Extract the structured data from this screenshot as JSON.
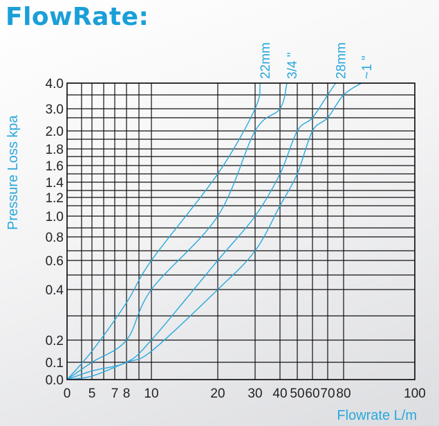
{
  "title": "FlowRate:",
  "chart_data": {
    "type": "line",
    "xlabel": "Flowrate L/m",
    "ylabel": "Pressure Loss  kpa",
    "x_ticks": [
      0,
      5,
      7,
      8,
      10,
      20,
      30,
      40,
      50,
      60,
      70,
      80,
      100
    ],
    "x_tick_labels": [
      "0",
      "5",
      "7",
      "8",
      "10",
      "20",
      "30",
      "40",
      "50",
      "60",
      "70",
      "80",
      "100"
    ],
    "x_grid": [
      0,
      3,
      5,
      6,
      7,
      8,
      9,
      10,
      20,
      30,
      40,
      50,
      60,
      70,
      80,
      100
    ],
    "y_ticks": [
      0.0,
      0.1,
      0.2,
      0.4,
      0.6,
      0.8,
      1.0,
      1.2,
      1.4,
      1.6,
      1.8,
      2.0,
      3.0,
      4.0
    ],
    "y_tick_labels": [
      "0.0",
      "0.1",
      "0.2",
      "0.4",
      "0.6",
      "0.8",
      "1.0",
      "1.2",
      "1.4",
      "1.6",
      "1.8",
      "2.0",
      "3.0",
      "4.0"
    ],
    "y_grid": [
      0.0,
      0.1,
      0.2,
      0.3,
      0.4,
      0.5,
      0.6,
      0.7,
      0.8,
      0.9,
      1.0,
      1.1,
      1.2,
      1.3,
      1.4,
      1.5,
      1.6,
      1.7,
      1.8,
      1.9,
      2.0,
      2.5,
      3.0,
      3.5,
      4.0
    ],
    "xlim": [
      0,
      100
    ],
    "ylim": [
      0,
      4.0
    ],
    "grid": true,
    "series": [
      {
        "name": "22mm",
        "x": [
          0,
          5,
          8,
          10,
          20,
          30,
          32
        ],
        "y": [
          0,
          0.15,
          0.35,
          0.6,
          1.5,
          3.0,
          4.0
        ]
      },
      {
        "name": "3/4 \"",
        "x": [
          0,
          5,
          8,
          10,
          20,
          30,
          40,
          44
        ],
        "y": [
          0,
          0.1,
          0.2,
          0.4,
          1.0,
          2.0,
          3.0,
          4.0
        ]
      },
      {
        "name": "28mm",
        "x": [
          0,
          5,
          8,
          10,
          20,
          30,
          40,
          50,
          60,
          70,
          75
        ],
        "y": [
          0,
          0.05,
          0.1,
          0.2,
          0.6,
          1.0,
          1.5,
          2.0,
          2.5,
          3.5,
          4.0
        ]
      },
      {
        "name": "~1 \"",
        "x": [
          0,
          5,
          8,
          10,
          20,
          30,
          40,
          50,
          60,
          70,
          80,
          85
        ],
        "y": [
          0,
          0.02,
          0.1,
          0.15,
          0.4,
          0.7,
          1.1,
          1.5,
          2.0,
          2.5,
          3.5,
          4.0
        ]
      }
    ],
    "colors": {
      "series": "#29a8dc",
      "grid": "#111111",
      "title": "#1a9fd8"
    }
  }
}
